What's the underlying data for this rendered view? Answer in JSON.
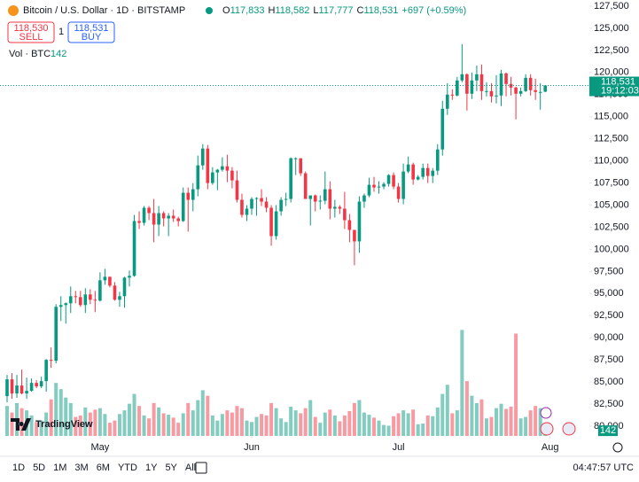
{
  "header": {
    "title": "Bitcoin / U.S. Dollar · 1D · BITSTAMP",
    "ohlc": [
      {
        "key": "O",
        "text": "117,833"
      },
      {
        "key": "H",
        "text": "118,582"
      },
      {
        "key": "L",
        "text": "117,777"
      },
      {
        "key": "C",
        "text": "118,531"
      }
    ],
    "change": "+697 (+0.59%)",
    "sell": {
      "price": "118,530",
      "label": "SELL"
    },
    "spread": "1",
    "buy": {
      "price": "118,531",
      "label": "BUY"
    },
    "volume_legend": {
      "label": "Vol · BTC",
      "value": "142"
    }
  },
  "chart_data": {
    "type": "candlestick",
    "up_color": "#089981",
    "down_color": "#f23645",
    "grid": false,
    "ylim": [
      78900,
      128200
    ],
    "yticks": [
      {
        "value": 80000,
        "label": "80,000"
      },
      {
        "value": 82500,
        "label": "82,500"
      },
      {
        "value": 85000,
        "label": "85,000"
      },
      {
        "value": 87500,
        "label": "87,500"
      },
      {
        "value": 90000,
        "label": "90,000"
      },
      {
        "value": 92500,
        "label": "92,500"
      },
      {
        "value": 95000,
        "label": "95,000"
      },
      {
        "value": 97500,
        "label": "97,500"
      },
      {
        "value": 100000,
        "label": "100,000"
      },
      {
        "value": 102500,
        "label": "102,500"
      },
      {
        "value": 105000,
        "label": "105,000"
      },
      {
        "value": 107500,
        "label": "107,500"
      },
      {
        "value": 110000,
        "label": "110,000"
      },
      {
        "value": 112500,
        "label": "112,500"
      },
      {
        "value": 115000,
        "label": "115,000"
      },
      {
        "value": 117500,
        "label": "117,500"
      },
      {
        "value": 120000,
        "label": "120,000"
      },
      {
        "value": 122500,
        "label": "122,500"
      },
      {
        "value": 125000,
        "label": "125,000"
      },
      {
        "value": 127500,
        "label": "127,500"
      }
    ],
    "xticks": [
      {
        "value": 19,
        "label": "May"
      },
      {
        "value": 50,
        "label": "Jun"
      },
      {
        "value": 80,
        "label": "Jul"
      },
      {
        "value": 111,
        "label": "Aug"
      }
    ],
    "candles": [
      [
        83400,
        85800,
        82700,
        85300
      ],
      [
        85300,
        86000,
        83100,
        83700
      ],
      [
        83700,
        85800,
        83200,
        84600
      ],
      [
        84600,
        86400,
        83600,
        83700
      ],
      [
        83700,
        85500,
        83100,
        84000
      ],
      [
        84000,
        85400,
        83900,
        84900
      ],
      [
        84900,
        85200,
        84300,
        84500
      ],
      [
        84500,
        85600,
        84300,
        85100
      ],
      [
        85100,
        87600,
        83900,
        87500
      ],
      [
        87500,
        88900,
        86600,
        87400
      ],
      [
        87400,
        93800,
        87100,
        93500
      ],
      [
        93500,
        94700,
        91900,
        93700
      ],
      [
        93700,
        94000,
        91600,
        93900
      ],
      [
        93900,
        95800,
        92800,
        94700
      ],
      [
        94700,
        95300,
        93900,
        94600
      ],
      [
        94600,
        95300,
        93500,
        93700
      ],
      [
        93700,
        95600,
        92800,
        94900
      ],
      [
        94900,
        95500,
        93800,
        94300
      ],
      [
        94300,
        95300,
        92900,
        94200
      ],
      [
        94200,
        97400,
        94100,
        96500
      ],
      [
        96500,
        97800,
        96000,
        96900
      ],
      [
        96900,
        96900,
        95700,
        95900
      ],
      [
        95900,
        96300,
        94200,
        94300
      ],
      [
        94300,
        95200,
        93500,
        94700
      ],
      [
        94700,
        96900,
        93400,
        96800
      ],
      [
        96800,
        97600,
        95800,
        97000
      ],
      [
        97000,
        103900,
        96900,
        103200
      ],
      [
        103200,
        104300,
        102300,
        103000
      ],
      [
        103000,
        104900,
        102700,
        104700
      ],
      [
        104700,
        104900,
        103300,
        104100
      ],
      [
        104100,
        105700,
        100800,
        102800
      ],
      [
        102800,
        104900,
        101500,
        104100
      ],
      [
        104100,
        104300,
        102600,
        103500
      ],
      [
        103500,
        104100,
        101500,
        103800
      ],
      [
        103800,
        104500,
        103100,
        103500
      ],
      [
        103500,
        103700,
        102600,
        103200
      ],
      [
        103200,
        107000,
        103100,
        106400
      ],
      [
        106400,
        107000,
        102000,
        105600
      ],
      [
        105600,
        107500,
        104300,
        106800
      ],
      [
        106800,
        110600,
        106000,
        109500
      ],
      [
        109500,
        111900,
        109000,
        111400
      ],
      [
        111400,
        111800,
        106800,
        107500
      ],
      [
        107500,
        109300,
        107300,
        108700
      ],
      [
        108700,
        109100,
        106700,
        109000
      ],
      [
        109000,
        110400,
        108800,
        109400
      ],
      [
        109400,
        110700,
        107600,
        108900
      ],
      [
        108900,
        109300,
        106900,
        107800
      ],
      [
        107800,
        108900,
        105300,
        105600
      ],
      [
        105600,
        106300,
        103600,
        103900
      ],
      [
        103900,
        105000,
        103200,
        104600
      ],
      [
        104600,
        105900,
        103900,
        105700
      ],
      [
        105700,
        105900,
        103800,
        105800
      ],
      [
        105800,
        106800,
        104900,
        105400
      ],
      [
        105400,
        105900,
        104200,
        104700
      ],
      [
        104700,
        105000,
        100400,
        101500
      ],
      [
        101500,
        105000,
        101100,
        104300
      ],
      [
        104300,
        105900,
        103800,
        105600
      ],
      [
        105600,
        106400,
        104900,
        105700
      ],
      [
        105700,
        110400,
        105300,
        110300
      ],
      [
        110300,
        110400,
        108400,
        110300
      ],
      [
        110300,
        110300,
        108300,
        108600
      ],
      [
        108600,
        108800,
        105700,
        105700
      ],
      [
        105700,
        106100,
        102700,
        106100
      ],
      [
        106100,
        106200,
        104300,
        105400
      ],
      [
        105400,
        106100,
        104500,
        105500
      ],
      [
        105500,
        108800,
        105100,
        106800
      ],
      [
        106800,
        107700,
        103400,
        104600
      ],
      [
        104600,
        105600,
        103600,
        104800
      ],
      [
        104800,
        105000,
        104000,
        104600
      ],
      [
        104600,
        106500,
        102300,
        103300
      ],
      [
        103300,
        104000,
        100800,
        102200
      ],
      [
        102200,
        102200,
        98200,
        100900
      ],
      [
        100900,
        106000,
        99600,
        105400
      ],
      [
        105400,
        106300,
        104700,
        106100
      ],
      [
        106100,
        108100,
        105900,
        107300
      ],
      [
        107300,
        108200,
        106500,
        107000
      ],
      [
        107000,
        107700,
        106300,
        107100
      ],
      [
        107100,
        107600,
        106800,
        107400
      ],
      [
        107400,
        108500,
        107100,
        108400
      ],
      [
        108400,
        108700,
        106800,
        107100
      ],
      [
        107100,
        107500,
        105300,
        105700
      ],
      [
        105700,
        109700,
        105100,
        108800
      ],
      [
        108800,
        110500,
        108600,
        109600
      ],
      [
        109600,
        109800,
        107300,
        107900
      ],
      [
        107900,
        108400,
        107800,
        108200
      ],
      [
        108200,
        109700,
        107900,
        109200
      ],
      [
        109200,
        109700,
        107500,
        108300
      ],
      [
        108300,
        109200,
        107500,
        108900
      ],
      [
        108900,
        111900,
        108400,
        111300
      ],
      [
        111300,
        116800,
        110600,
        115900
      ],
      [
        115900,
        118800,
        115200,
        117500
      ],
      [
        117500,
        118100,
        116900,
        117400
      ],
      [
        117400,
        119500,
        117300,
        119100
      ],
      [
        119100,
        123200,
        118900,
        119800
      ],
      [
        119800,
        119900,
        115700,
        117600
      ],
      [
        117600,
        120000,
        117000,
        119100
      ],
      [
        119100,
        120800,
        117900,
        119800
      ],
      [
        119800,
        120900,
        116900,
        117900
      ],
      [
        117900,
        118900,
        117300,
        117900
      ],
      [
        117900,
        118800,
        116600,
        117300
      ],
      [
        117300,
        119700,
        116500,
        117400
      ],
      [
        117400,
        120300,
        116200,
        119900
      ],
      [
        119900,
        120000,
        117300,
        118700
      ],
      [
        118700,
        119500,
        117400,
        118300
      ],
      [
        118300,
        118400,
        114700,
        117600
      ],
      [
        117600,
        118300,
        117300,
        117900
      ],
      [
        117900,
        119800,
        117800,
        119400
      ],
      [
        119400,
        119800,
        117400,
        118000
      ],
      [
        118000,
        119300,
        116900,
        117800
      ],
      [
        117800,
        118800,
        115800,
        117800
      ],
      [
        117833,
        118582,
        117777,
        118531
      ]
    ],
    "volume": [
      820,
      640,
      900,
      760,
      700,
      560,
      380,
      420,
      640,
      1000,
      1450,
      1280,
      1050,
      900,
      520,
      560,
      780,
      640,
      720,
      760,
      600,
      360,
      420,
      600,
      700,
      880,
      1150,
      820,
      560,
      480,
      900,
      780,
      620,
      580,
      500,
      360,
      620,
      900,
      700,
      980,
      1250,
      1100,
      560,
      420,
      600,
      700,
      640,
      820,
      760,
      420,
      380,
      520,
      600,
      560,
      900,
      760,
      480,
      380,
      800,
      700,
      620,
      760,
      980,
      520,
      360,
      640,
      720,
      560,
      400,
      560,
      680,
      900,
      980,
      640,
      580,
      500,
      420,
      300,
      280,
      540,
      620,
      700,
      620,
      720,
      320,
      340,
      560,
      540,
      780,
      1150,
      1400,
      620,
      700,
      2900,
      1500,
      1100,
      900,
      1000,
      480,
      520,
      760,
      880,
      740,
      800,
      2800,
      480,
      520,
      700,
      820,
      760,
      142
    ],
    "volume_lim": [
      0,
      4000
    ],
    "price_tag": {
      "price": "118,531",
      "countdown": "19:12:03"
    },
    "volume_tag": "142"
  },
  "logo": "TradingView",
  "toolbar": {
    "ranges": [
      "1D",
      "5D",
      "1M",
      "3M",
      "6M",
      "YTD",
      "1Y",
      "5Y",
      "All"
    ],
    "clock": "04:47:57 UTC"
  }
}
